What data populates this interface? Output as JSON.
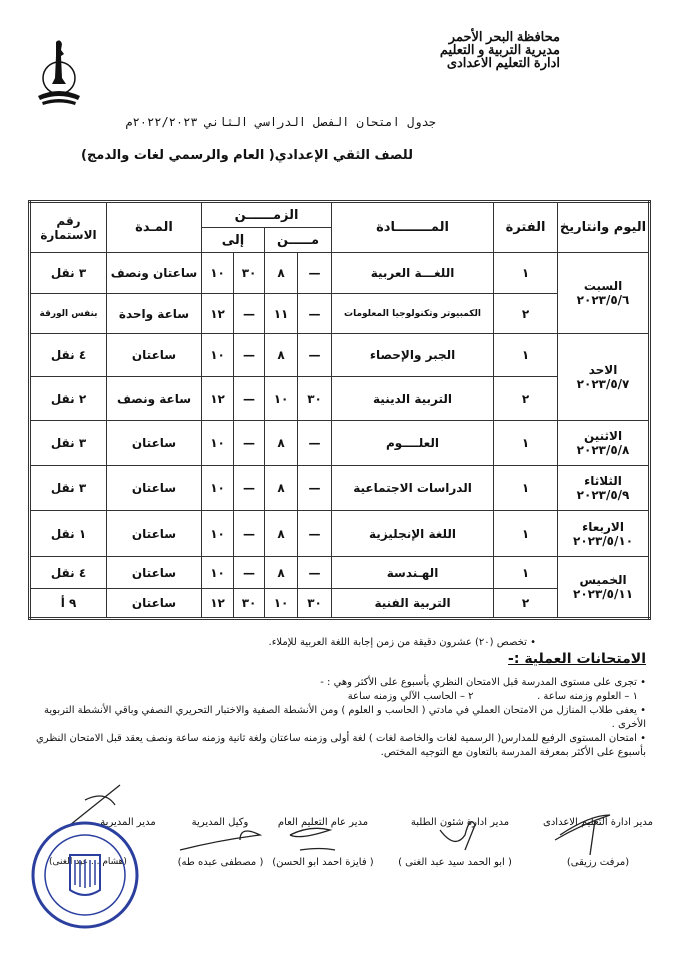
{
  "header": {
    "lines": [
      "محافظة البحر الأحمر",
      "مديرية التربية و التعليم",
      "ادارة التعليم الاعدادى"
    ]
  },
  "title": "جدول امتحان الفصل الدراسي الثاني ٢٠٢٢/٢٠٢٣م",
  "subtitle": "للصف الثقي الإعدادي( العام والرسمي لغات والدمج)",
  "table": {
    "headers": {
      "day_date": "اليوم وانتاريخ",
      "period": "الفترة",
      "subject": "المــــــــادة",
      "time": "الزمــــــن",
      "from": "مـــــن",
      "to": "إلى",
      "duration": "المـدة",
      "form_no": "رقم الاستمارة"
    },
    "days": [
      {
        "day": "السبت",
        "date": "٢٠٢٣/٥/٦",
        "rows": [
          {
            "period": "١",
            "subject": "اللغـــة العربية",
            "from_min": "—",
            "from_hr": "٨",
            "to_min": "٣٠",
            "to_hr": "١٠",
            "duration": "ساعتان ونصف",
            "form": "٣ نقل"
          },
          {
            "period": "٢",
            "subject": "الكمبيوتر وتكنولوجيا المعلومات",
            "from_min": "—",
            "from_hr": "١١",
            "to_min": "—",
            "to_hr": "١٢",
            "duration": "ساعة واحدة",
            "form": "بنفس الورقة"
          }
        ]
      },
      {
        "day": "الاحد",
        "date": "٢٠٢٣/٥/٧",
        "rows": [
          {
            "period": "١",
            "subject": "الجبر والإحصاء",
            "from_min": "—",
            "from_hr": "٨",
            "to_min": "—",
            "to_hr": "١٠",
            "duration": "ساعتان",
            "form": "٤ نقل"
          },
          {
            "period": "٢",
            "subject": "التربية الدينية",
            "from_min": "٣٠",
            "from_hr": "١٠",
            "to_min": "—",
            "to_hr": "١٢",
            "duration": "ساعة ونصف",
            "form": "٢ نقل"
          }
        ]
      },
      {
        "day": "الاثنين",
        "date": "٢٠٢٣/٥/٨",
        "rows": [
          {
            "period": "١",
            "subject": "العلــــوم",
            "from_min": "—",
            "from_hr": "٨",
            "to_min": "—",
            "to_hr": "١٠",
            "duration": "ساعتان",
            "form": "٣ نقل"
          }
        ]
      },
      {
        "day": "الثلاثاء",
        "date": "٢٠٢٣/٥/٩",
        "rows": [
          {
            "period": "١",
            "subject": "الدراسات الاجتماعية",
            "from_min": "—",
            "from_hr": "٨",
            "to_min": "—",
            "to_hr": "١٠",
            "duration": "ساعتان",
            "form": "٣ نقل"
          }
        ]
      },
      {
        "day": "الاربعاء",
        "date": "٢٠٢٣/٥/١٠",
        "rows": [
          {
            "period": "١",
            "subject": "اللغة الإنجليزية",
            "from_min": "—",
            "from_hr": "٨",
            "to_min": "—",
            "to_hr": "١٠",
            "duration": "ساعتان",
            "form": "١ نقل"
          }
        ]
      },
      {
        "day": "الخميس",
        "date": "٢٠٢٣/٥/١١",
        "rows": [
          {
            "period": "١",
            "subject": "الهـندسة",
            "from_min": "—",
            "from_hr": "٨",
            "to_min": "—",
            "to_hr": "١٠",
            "duration": "ساعتان",
            "form": "٤ نقل"
          },
          {
            "period": "٢",
            "subject": "التربية الفنية",
            "from_min": "٣٠",
            "from_hr": "١٠",
            "to_min": "٣٠",
            "to_hr": "١٢",
            "duration": "ساعتان",
            "form": "٩ أ"
          }
        ]
      }
    ]
  },
  "notes": {
    "dictation": "• تخصص (٢٠) عشرون دقيقة من زمن إجابة اللغة العربية للإملاء.",
    "practical_heading": "الامتحانات العملية :-",
    "items": [
      "• تجرى على مستوى المدرسة قبل الامتحان النظري بأسبوع على الأكثر وهي : -",
      "١ – العلوم وزمنه ساعة .                    ٢ – الحاسب الآلي وزمنه ساعة",
      "• يعفى طلاب المنازل من الامتحان العملي في مادتي ( الحاسب و العلوم ) ومن الأنشطة الصفية والاختبار التحريري النصفي وباقي الأنشطة التربوية الأخرى .",
      "• امتحان المستوى الرفيع للمدارس( الرسمية لغات والخاصة لغات ) لغة أولى وزمنه ساعتان ولغة ثانية وزمنه ساعة ونصف يعقد قبل الامتحان النظري بأسبوع على الأكثر بمعرفة المدرسة بالتعاون مع التوجيه المختص."
    ]
  },
  "signatures": [
    {
      "title": "مدير ادارة التعليم الاعدادى",
      "name": "(مرفت رزيقى)"
    },
    {
      "title": "مدير ادارة شئون الطلبة",
      "name": "( ابو الحمد سيد عبد الغنى )"
    },
    {
      "title": "مدير عام التعليم العام",
      "name": "( فايزة احمد ابو الحسن)"
    },
    {
      "title": "وكيل المديرية",
      "name": "( مصطفى عبده طه)"
    },
    {
      "title": "مدير المديرية",
      "name": "(هشام ... عبد الغنى)"
    }
  ],
  "colors": {
    "ink": "#111111",
    "stamp": "#2b3f9e",
    "paper": "#ffffff"
  }
}
